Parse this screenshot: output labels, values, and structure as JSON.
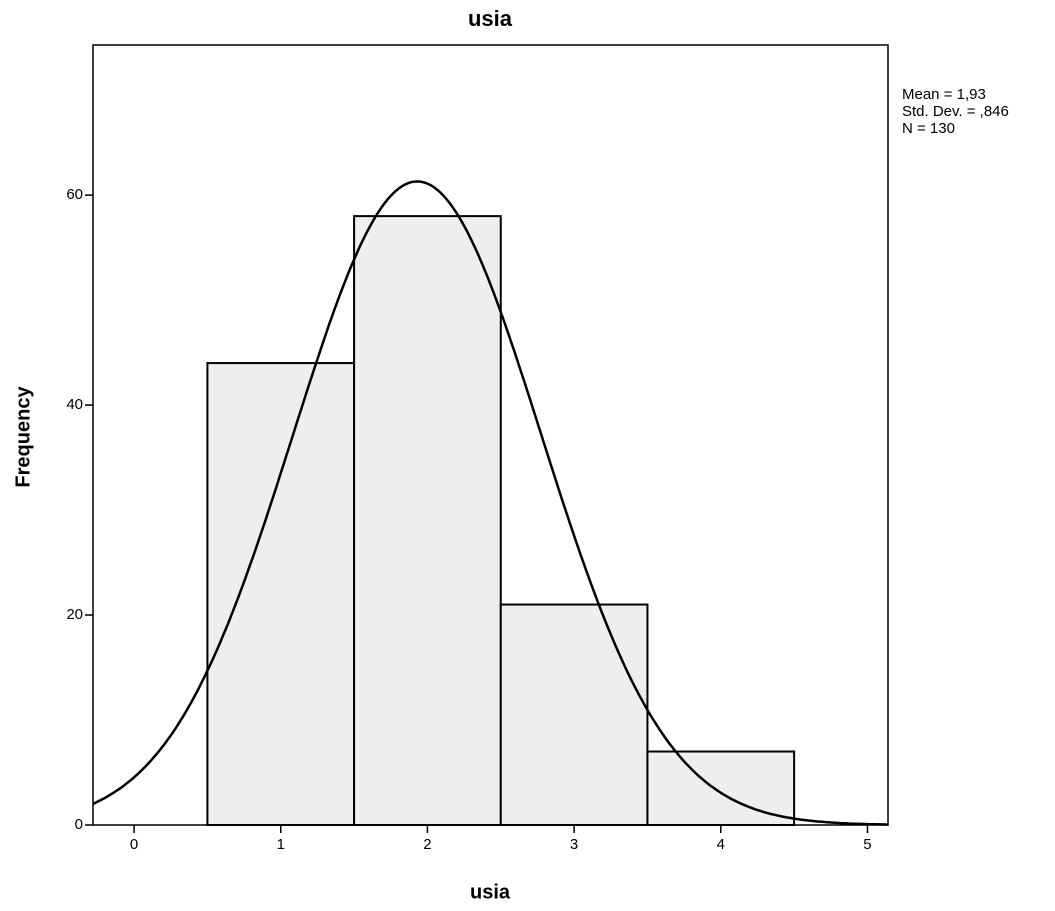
{
  "chart_data": {
    "type": "histogram",
    "title": "usia",
    "x_label": "usia",
    "y_label": "Frequency",
    "bins": [
      0.5,
      1.5,
      2.5,
      3.5,
      4.5
    ],
    "values": [
      44,
      58,
      21,
      7
    ],
    "color": "#eeeeee",
    "xlim": [
      -0.28,
      5.14
    ],
    "ylim": [
      0,
      74.3
    ],
    "xticks": [
      0,
      1,
      2,
      3,
      4,
      5
    ],
    "yticks": [
      0,
      20,
      40,
      60
    ],
    "stats": [
      {
        "value": 1.93,
        "label": "Mean = 1,93"
      },
      {
        "value": 0.846,
        "label": "Std. Dev. = ,846"
      },
      {
        "value": 130,
        "label": "N = 130"
      }
    ],
    "normal_curve": true
  }
}
